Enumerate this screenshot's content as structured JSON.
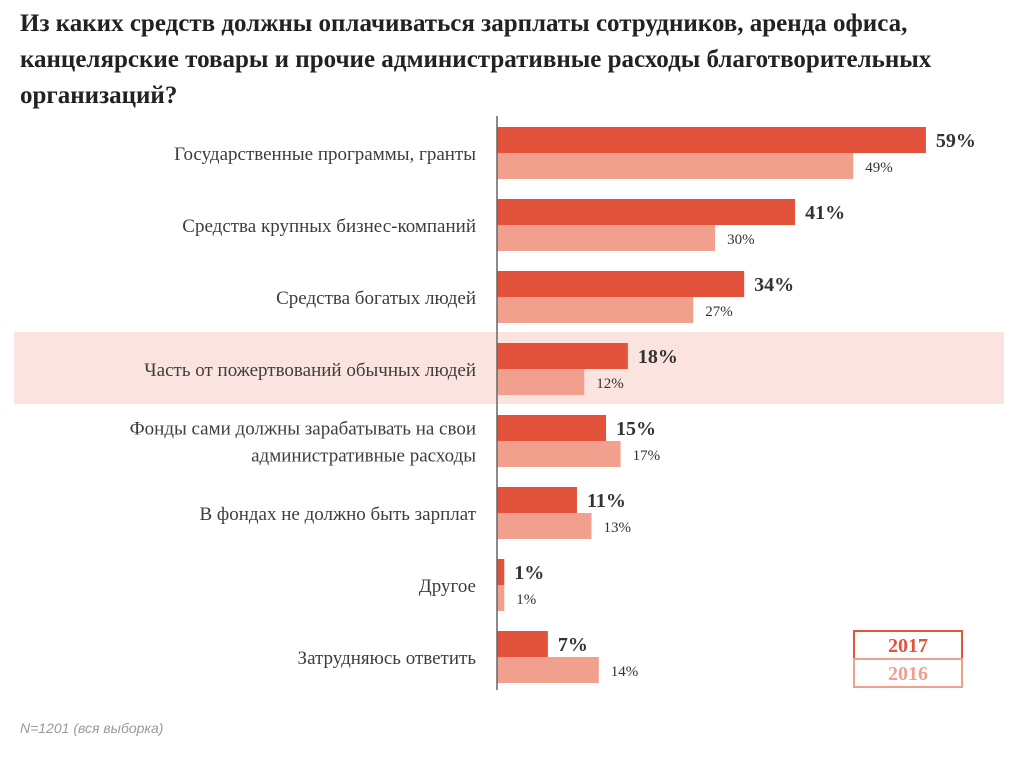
{
  "title": "Из каких средств должны оплачиваться зарплаты сотрудников, аренда офиса, канцелярские товары и прочие административные расходы благотворительных организаций?",
  "footnote": "N=1201 (вся выборка)",
  "colors": {
    "bar_2017": "#e3533b",
    "bar_2016": "#f0a08c",
    "highlight_bg": "#fbe3df",
    "axis": "#666666"
  },
  "chart_data": {
    "type": "bar",
    "orientation": "horizontal",
    "categories": [
      "Государственные программы, гранты",
      "Средства крупных бизнес-компаний",
      "Средства богатых людей",
      "Часть от пожертвований обычных людей",
      "Фонды сами должны зарабатывать на свои административные расходы",
      "В фондах не должно быть зарплат",
      "Другое",
      "Затрудняюсь ответить"
    ],
    "category_lines": [
      [
        "Государственные программы, гранты"
      ],
      [
        "Средства крупных бизнес-компаний"
      ],
      [
        "Средства богатых людей"
      ],
      [
        "Часть от пожертвований обычных людей"
      ],
      [
        "Фонды сами должны зарабатывать на свои",
        "административные расходы"
      ],
      [
        "В фондах не должно быть зарплат"
      ],
      [
        "Другое"
      ],
      [
        "Затрудняюсь ответить"
      ]
    ],
    "series": [
      {
        "name": "2017",
        "values": [
          59,
          41,
          34,
          18,
          15,
          11,
          1,
          7
        ],
        "labels": [
          "59%",
          "41%",
          "34%",
          "18%",
          "15%",
          "11%",
          "1%",
          "7%"
        ]
      },
      {
        "name": "2016",
        "values": [
          49,
          30,
          27,
          12,
          17,
          13,
          1,
          14
        ],
        "labels": [
          "49%",
          "30%",
          "27%",
          "12%",
          "17%",
          "13%",
          "1%",
          "14%"
        ]
      }
    ],
    "highlighted_category_index": 3,
    "xlim": [
      0,
      100
    ],
    "legend_position": "bottom-right",
    "grid": false
  }
}
